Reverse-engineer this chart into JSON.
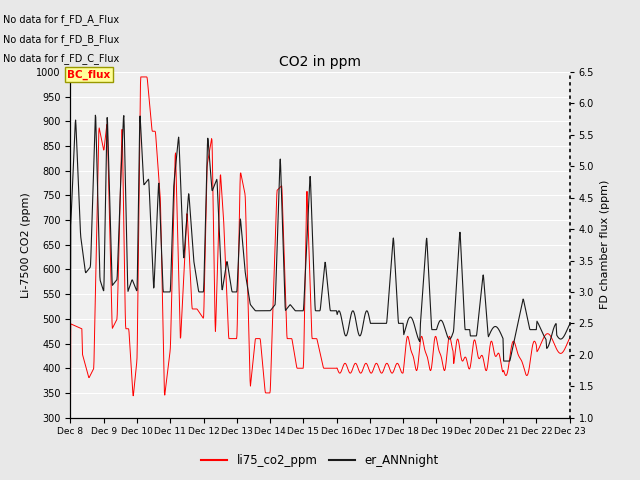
{
  "title": "CO2 in ppm",
  "ylabel_left": "Li-7500 CO2 (ppm)",
  "ylabel_right": "FD chamber flux (ppm)",
  "ylim_left": [
    300,
    1000
  ],
  "ylim_right": [
    1.0,
    6.5
  ],
  "yticks_left": [
    300,
    350,
    400,
    450,
    500,
    550,
    600,
    650,
    700,
    750,
    800,
    850,
    900,
    950,
    1000
  ],
  "yticks_right": [
    1.0,
    1.5,
    2.0,
    2.5,
    3.0,
    3.5,
    4.0,
    4.5,
    5.0,
    5.5,
    6.0,
    6.5
  ],
  "xlabel_ticks": [
    "Dec 8",
    "Dec 9",
    "Dec 10",
    "Dec 11",
    "Dec 12",
    "Dec 13",
    "Dec 14",
    "Dec 15",
    "Dec 16",
    "Dec 17",
    "Dec 18",
    "Dec 19",
    "Dec 20",
    "Dec 21",
    "Dec 22",
    "Dec 23"
  ],
  "annotations": [
    "No data for f_FD_A_Flux",
    "No data for f_FD_B_Flux",
    "No data for f_FD_C_Flux"
  ],
  "legend_label_bc": "BC_flux",
  "legend_label_red": "li75_co2_ppm",
  "legend_label_black": "er_ANNnight",
  "bg_color": "#e8e8e8",
  "plot_bg_color": "#f0f0f0",
  "red_color": "#ff0000",
  "black_color": "#1a1a1a",
  "bc_box_facecolor": "#ffff99",
  "bc_box_edgecolor": "#999900"
}
